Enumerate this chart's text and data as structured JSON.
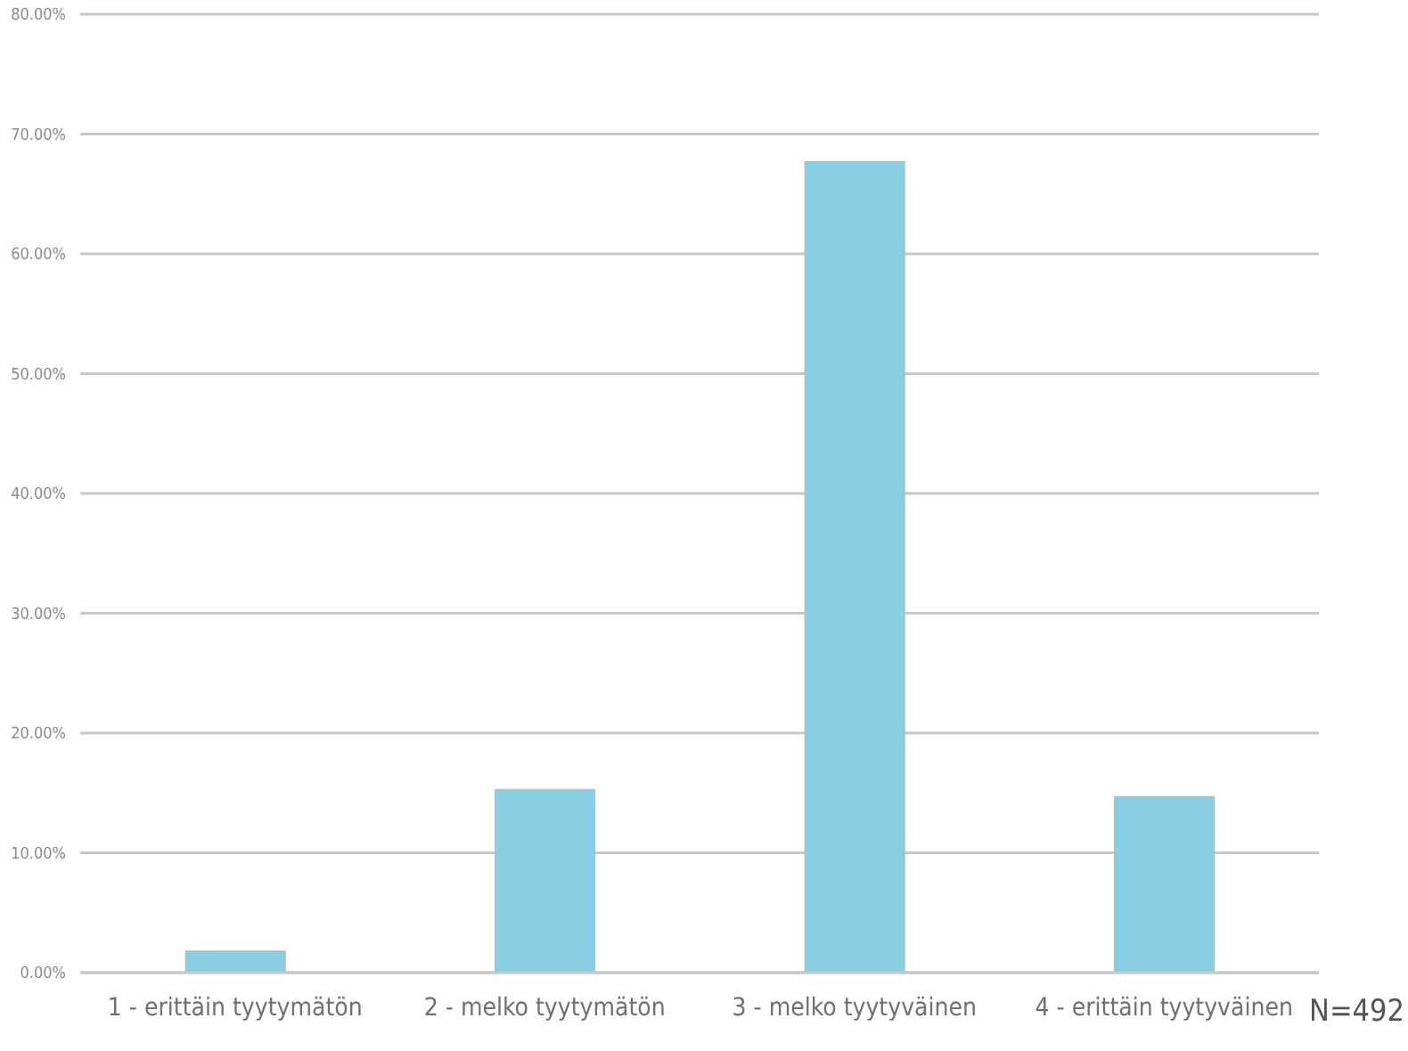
{
  "chart_data": {
    "type": "bar",
    "categories": [
      "1 - erittäin tyytymätön",
      "2 - melko tyytymätön",
      "3 - melko tyytyväinen",
      "4 - erittäin tyytyväinen"
    ],
    "values": [
      1.8,
      15.3,
      67.7,
      14.7
    ],
    "color": "#89cfe4",
    "ylim": [
      0,
      80
    ],
    "yticks": [
      {
        "value": 0,
        "label": "0.00%"
      },
      {
        "value": 10,
        "label": "10.00%"
      },
      {
        "value": 20,
        "label": "20.00%"
      },
      {
        "value": 30,
        "label": "30.00%"
      },
      {
        "value": 40,
        "label": "40.00%"
      },
      {
        "value": 50,
        "label": "50.00%"
      },
      {
        "value": 60,
        "label": "60.00%"
      },
      {
        "value": 70,
        "label": "70.00%"
      },
      {
        "value": 80,
        "label": "80.00%"
      }
    ],
    "grid": "y",
    "annotations": [
      "N=492"
    ]
  }
}
